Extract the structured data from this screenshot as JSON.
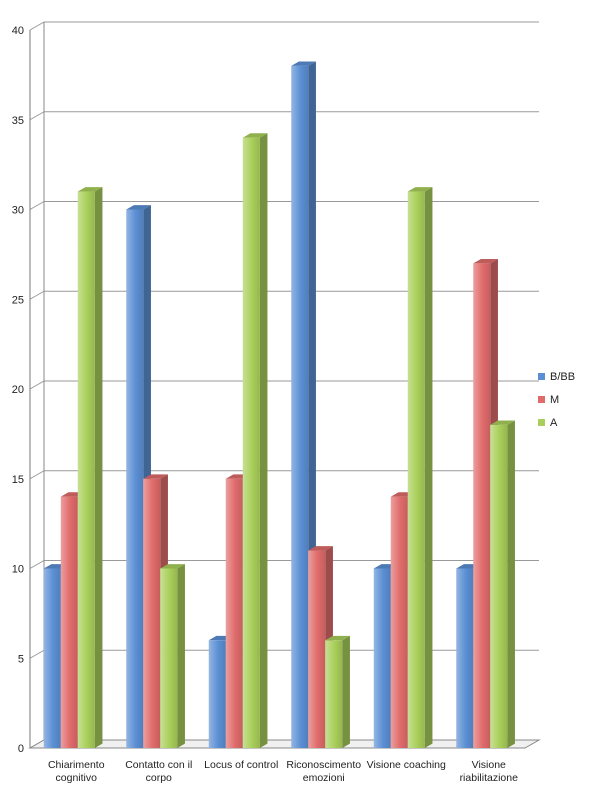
{
  "chart_data": {
    "type": "bar",
    "categories": [
      [
        "Chiarimento",
        "cognitivo"
      ],
      [
        "Contatto con il",
        "corpo"
      ],
      [
        "Locus of control"
      ],
      [
        "Riconoscimento",
        "emozioni"
      ],
      [
        "Visione coaching"
      ],
      [
        "Visione",
        "riabilitazione"
      ]
    ],
    "series": [
      {
        "name": "B/BB",
        "values": [
          10,
          30,
          6,
          38,
          10,
          10
        ],
        "color": "#5b8fd4"
      },
      {
        "name": "M",
        "values": [
          14,
          15,
          15,
          11,
          14,
          27
        ],
        "color": "#e06b6b"
      },
      {
        "name": "A",
        "values": [
          31,
          10,
          34,
          6,
          31,
          18
        ],
        "color": "#a9cf5a"
      }
    ],
    "ylim": [
      0,
      40
    ],
    "yticks": [
      0,
      5,
      10,
      15,
      20,
      25,
      30,
      35,
      40
    ],
    "grid": true,
    "legend": "right",
    "style": "3d-bar"
  }
}
